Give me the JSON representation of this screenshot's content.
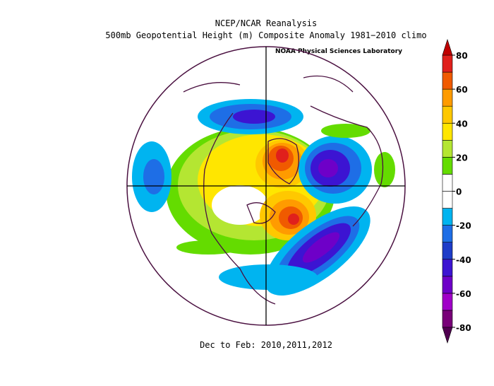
{
  "header": {
    "title": "NCEP/NCAR Reanalysis",
    "subtitle": "500mb Geopotential Height (m) Composite Anomaly 1981−2010 climo",
    "attribution": "NOAA Physical Sciences Laboratory"
  },
  "footer": "Dec to Feb: 2010,2011,2012",
  "colorbar": {
    "levels": [
      -80,
      -70,
      -60,
      -50,
      -40,
      -30,
      -20,
      -10,
      0,
      10,
      20,
      30,
      40,
      50,
      60,
      70,
      80
    ],
    "colors": [
      "#780078",
      "#a000c8",
      "#6e00c8",
      "#3c14d2",
      "#1e3cc8",
      "#1e6ee6",
      "#00b4f0",
      "#ffffff",
      "#ffffff",
      "#64dc00",
      "#b4e632",
      "#ffe600",
      "#ffc800",
      "#ff9b00",
      "#f05a00",
      "#e0201c"
    ],
    "under_color": "#500050",
    "over_color": "#c00000",
    "ticks": [
      80,
      60,
      40,
      20,
      0,
      -20,
      -40,
      -60,
      -80
    ]
  }
}
